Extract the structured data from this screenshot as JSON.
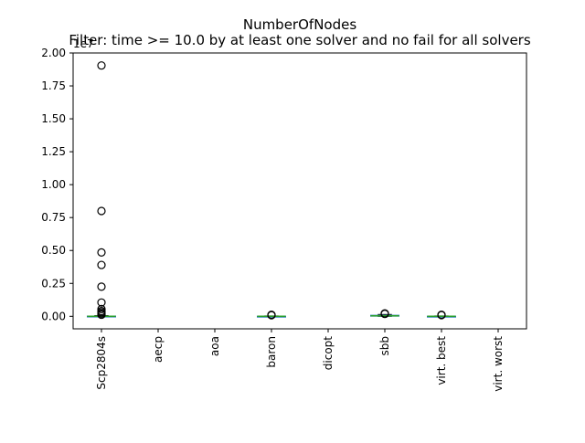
{
  "chart_data": {
    "type": "boxplot",
    "title": "NumberOfNodes",
    "subtitle": "Filter: time >= 10.0 by at least one solver and no fail for all solvers",
    "offset_label": "1e7",
    "categories": [
      "Scp2804s",
      "aecp",
      "aoa",
      "baron",
      "dicopt",
      "sbb",
      "virt. best",
      "virt. worst"
    ],
    "y_ticks": [
      "0.00",
      "0.25",
      "0.50",
      "0.75",
      "1.00",
      "1.25",
      "1.50",
      "1.75",
      "2.00"
    ],
    "y_tick_values": [
      0.0,
      0.25,
      0.5,
      0.75,
      1.0,
      1.25,
      1.5,
      1.75,
      2.0
    ],
    "ylim": [
      -0.095,
      2.0
    ],
    "scale": "1e7",
    "grid": false,
    "median_color": "#2ca02c",
    "box_color": "#1f77b4",
    "outlier_color": "#000000",
    "series": [
      {
        "category": "Scp2804s",
        "min": 0.0,
        "q1": 0.0,
        "median": 0.0,
        "q3": 0.002,
        "max": 0.005,
        "outliers": [
          1.905,
          0.8,
          0.485,
          0.39,
          0.225,
          0.105,
          0.055,
          0.04,
          0.03,
          0.02,
          0.012
        ]
      },
      {
        "category": "aecp",
        "empty": true
      },
      {
        "category": "aoa",
        "empty": true
      },
      {
        "category": "baron",
        "min": 0.0,
        "q1": 0.0,
        "median": 0.0,
        "q3": 0.001,
        "max": 0.003,
        "outliers": [
          0.012,
          0.008
        ]
      },
      {
        "category": "dicopt",
        "empty": true
      },
      {
        "category": "sbb",
        "min": 0.0,
        "q1": 0.002,
        "median": 0.004,
        "q3": 0.008,
        "max": 0.014,
        "outliers": [
          0.022,
          0.018
        ]
      },
      {
        "category": "virt. best",
        "min": 0.0,
        "q1": 0.0,
        "median": 0.0,
        "q3": 0.001,
        "max": 0.003,
        "outliers": [
          0.012,
          0.009
        ]
      },
      {
        "category": "virt. worst",
        "empty": true
      }
    ]
  }
}
